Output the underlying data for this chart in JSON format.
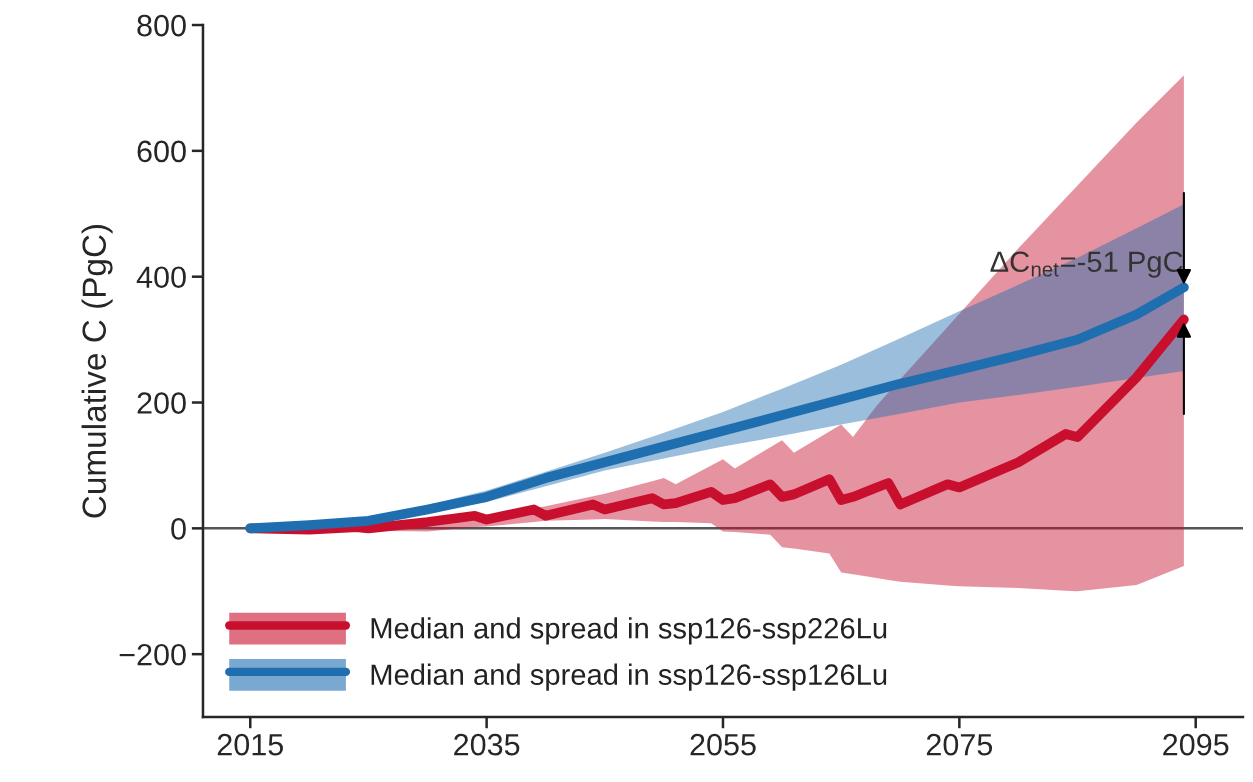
{
  "chart_data": {
    "type": "line",
    "ylabel": "Cumulative C (PgC)",
    "xlim": [
      2011,
      2099
    ],
    "xticks": [
      2015,
      2035,
      2055,
      2075,
      2095
    ],
    "ylim": [
      -300,
      800
    ],
    "yticks": [
      -200,
      0,
      200,
      400,
      600,
      800
    ],
    "legend": "bottom left",
    "grid": false,
    "ref_lines": [
      {
        "axis": "y",
        "value": 0,
        "color": "#555555"
      }
    ],
    "annotations": [
      {
        "text": "ΔC$_{net}$=-51 PgC",
        "x": 2094,
        "y": 383
      }
    ],
    "series": [
      {
        "name": "Median and spread in ssp126-ssp226Lu",
        "color": "#c8102e",
        "x": [
          2015,
          2020,
          2024,
          2025,
          2030,
          2034,
          2035,
          2039,
          2040,
          2044,
          2045,
          2049,
          2050,
          2051,
          2054,
          2055,
          2056,
          2059,
          2060,
          2061,
          2064,
          2065,
          2066,
          2068,
          2069,
          2070,
          2074,
          2075,
          2080,
          2084,
          2085,
          2090,
          2094
        ],
        "values": [
          0,
          -2,
          2,
          0,
          10,
          20,
          14,
          30,
          20,
          38,
          30,
          48,
          38,
          40,
          58,
          45,
          48,
          70,
          50,
          54,
          78,
          45,
          50,
          65,
          72,
          38,
          70,
          65,
          105,
          150,
          145,
          240,
          332
        ],
        "upper": [
          0,
          4,
          8,
          9,
          12,
          18,
          20,
          32,
          35,
          51,
          55,
          75,
          80,
          70,
          100,
          110,
          95,
          129,
          140,
          120,
          154,
          165,
          145,
          195,
          216,
          237,
          320,
          341,
          445,
          525,
          545,
          645,
          720
        ],
        "lower": [
          0,
          -2,
          -4,
          -4,
          -5,
          2,
          3,
          10,
          12,
          14,
          15,
          11,
          10,
          10,
          8,
          -5,
          -6,
          -10,
          -30,
          -32,
          -40,
          -70,
          -73,
          -79,
          -82,
          -85,
          -91,
          -92,
          -95,
          -99,
          -100,
          -90,
          -60
        ]
      },
      {
        "name": "Median and spread in ssp126-ssp126Lu",
        "color": "#1f6fb0",
        "x": [
          2015,
          2020,
          2025,
          2030,
          2035,
          2040,
          2045,
          2050,
          2055,
          2060,
          2065,
          2070,
          2075,
          2080,
          2085,
          2090,
          2094
        ],
        "values": [
          0,
          5,
          12,
          30,
          50,
          80,
          105,
          130,
          155,
          180,
          205,
          230,
          252,
          275,
          300,
          340,
          383
        ],
        "upper": [
          0,
          7,
          15,
          37,
          60,
          90,
          120,
          152,
          185,
          222,
          260,
          302,
          345,
          387,
          430,
          477,
          515
        ],
        "lower": [
          0,
          4,
          8,
          25,
          42,
          67,
          92,
          111,
          130,
          147,
          165,
          182,
          200,
          212,
          225,
          239,
          250
        ]
      }
    ]
  }
}
